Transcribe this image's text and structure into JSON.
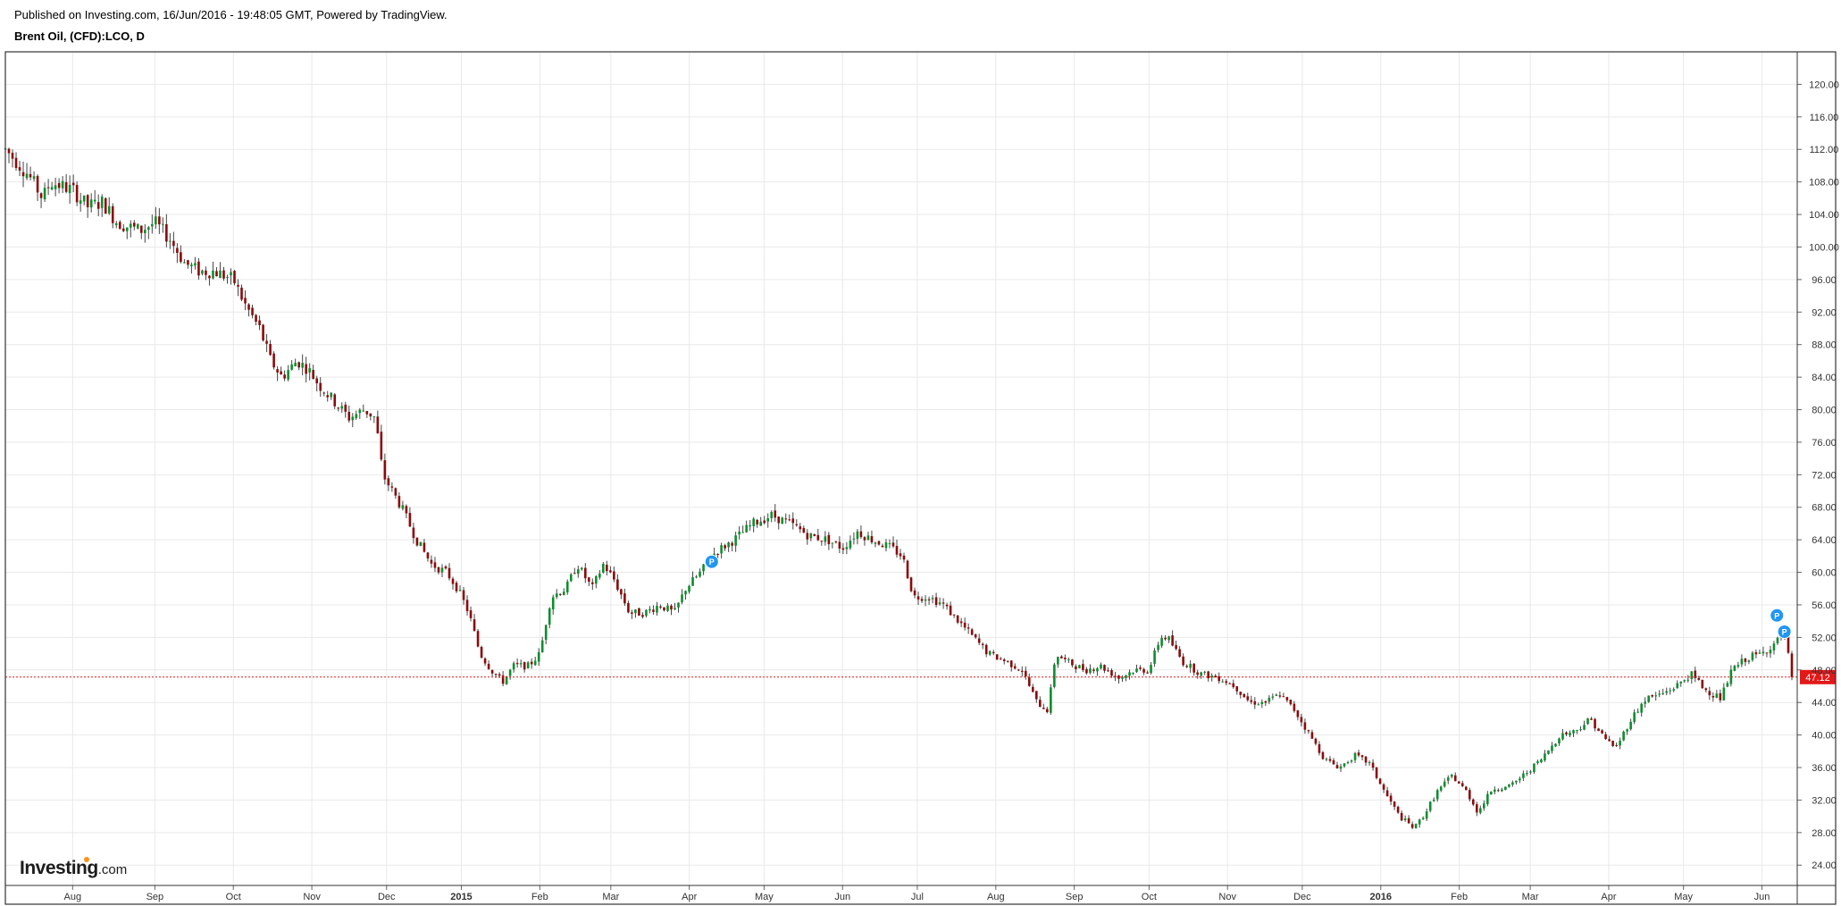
{
  "header": {
    "published": "Published on Investing.com, 16/Jun/2016 - 19:48:05 GMT, Powered by TradingView.",
    "symbol": "Brent Oil, (CFD):LCO, D"
  },
  "logo": {
    "main": "Investing",
    "sub": ".com"
  },
  "chart_data": {
    "type": "candlestick",
    "title": "",
    "ylim": [
      21.5,
      124
    ],
    "y_ticks": [
      "120.00",
      "116.00",
      "112.00",
      "108.00",
      "104.00",
      "100.00",
      "96.00",
      "92.00",
      "88.00",
      "84.00",
      "80.00",
      "76.00",
      "72.00",
      "68.00",
      "64.00",
      "60.00",
      "56.00",
      "52.00",
      "48.00",
      "44.00",
      "40.00",
      "36.00",
      "32.00",
      "28.00",
      "24.00"
    ],
    "x_ticks": [
      {
        "label": "Aug",
        "month": 0.9,
        "bold": false
      },
      {
        "label": "Sep",
        "month": 2.0,
        "bold": false
      },
      {
        "label": "Oct",
        "month": 3.05,
        "bold": false
      },
      {
        "label": "Nov",
        "month": 4.1,
        "bold": false
      },
      {
        "label": "Dec",
        "month": 5.1,
        "bold": false
      },
      {
        "label": "2015",
        "month": 6.1,
        "bold": true
      },
      {
        "label": "Feb",
        "month": 7.15,
        "bold": false
      },
      {
        "label": "Mar",
        "month": 8.1,
        "bold": false
      },
      {
        "label": "Apr",
        "month": 9.15,
        "bold": false
      },
      {
        "label": "May",
        "month": 10.15,
        "bold": false
      },
      {
        "label": "Jun",
        "month": 11.2,
        "bold": false
      },
      {
        "label": "Jul",
        "month": 12.2,
        "bold": false
      },
      {
        "label": "Aug",
        "month": 13.25,
        "bold": false
      },
      {
        "label": "Sep",
        "month": 14.3,
        "bold": false
      },
      {
        "label": "Oct",
        "month": 15.3,
        "bold": false
      },
      {
        "label": "Nov",
        "month": 16.35,
        "bold": false
      },
      {
        "label": "Dec",
        "month": 17.35,
        "bold": false
      },
      {
        "label": "2016",
        "month": 18.4,
        "bold": true
      },
      {
        "label": "Feb",
        "month": 19.45,
        "bold": false
      },
      {
        "label": "Mar",
        "month": 20.4,
        "bold": false
      },
      {
        "label": "Apr",
        "month": 21.45,
        "bold": false
      },
      {
        "label": "May",
        "month": 22.45,
        "bold": false
      },
      {
        "label": "Jun",
        "month": 23.5,
        "bold": false
      }
    ],
    "x_range_months": [
      0,
      23.9
    ],
    "price_path": [
      [
        0.0,
        112
      ],
      [
        0.3,
        109
      ],
      [
        0.5,
        106
      ],
      [
        0.6,
        108
      ],
      [
        0.9,
        107
      ],
      [
        1.1,
        105
      ],
      [
        1.3,
        105.5
      ],
      [
        1.5,
        103
      ],
      [
        1.8,
        102
      ],
      [
        2.0,
        103
      ],
      [
        2.2,
        101
      ],
      [
        2.4,
        98
      ],
      [
        2.6,
        97
      ],
      [
        2.8,
        97
      ],
      [
        3.05,
        96
      ],
      [
        3.2,
        93
      ],
      [
        3.4,
        90
      ],
      [
        3.55,
        86
      ],
      [
        3.7,
        84
      ],
      [
        3.9,
        86
      ],
      [
        4.05,
        85
      ],
      [
        4.2,
        83
      ],
      [
        4.4,
        81
      ],
      [
        4.6,
        79
      ],
      [
        4.8,
        80
      ],
      [
        4.95,
        79
      ],
      [
        5.05,
        72
      ],
      [
        5.3,
        68
      ],
      [
        5.5,
        64
      ],
      [
        5.7,
        61
      ],
      [
        5.9,
        60
      ],
      [
        6.05,
        58
      ],
      [
        6.2,
        55
      ],
      [
        6.35,
        50
      ],
      [
        6.5,
        48
      ],
      [
        6.65,
        46.5
      ],
      [
        6.8,
        48.5
      ],
      [
        7.0,
        48.5
      ],
      [
        7.15,
        50
      ],
      [
        7.3,
        57
      ],
      [
        7.5,
        58
      ],
      [
        7.65,
        61
      ],
      [
        7.85,
        58
      ],
      [
        8.0,
        61
      ],
      [
        8.15,
        59
      ],
      [
        8.35,
        55
      ],
      [
        8.55,
        55
      ],
      [
        8.75,
        56
      ],
      [
        8.95,
        55
      ],
      [
        9.1,
        58
      ],
      [
        9.3,
        60
      ],
      [
        9.5,
        62.5
      ],
      [
        9.75,
        64
      ],
      [
        10.0,
        66
      ],
      [
        10.25,
        67
      ],
      [
        10.5,
        66
      ],
      [
        10.75,
        64.5
      ],
      [
        11.0,
        64
      ],
      [
        11.2,
        63
      ],
      [
        11.4,
        65
      ],
      [
        11.6,
        64
      ],
      [
        11.85,
        63
      ],
      [
        12.0,
        62
      ],
      [
        12.15,
        57
      ],
      [
        12.35,
        57
      ],
      [
        12.55,
        56
      ],
      [
        12.75,
        54
      ],
      [
        12.95,
        52
      ],
      [
        13.15,
        50
      ],
      [
        13.4,
        49
      ],
      [
        13.6,
        48
      ],
      [
        13.8,
        44
      ],
      [
        13.95,
        43
      ],
      [
        14.05,
        50
      ],
      [
        14.2,
        49
      ],
      [
        14.45,
        48
      ],
      [
        14.65,
        48.5
      ],
      [
        14.9,
        47
      ],
      [
        15.1,
        48
      ],
      [
        15.3,
        48
      ],
      [
        15.45,
        52
      ],
      [
        15.55,
        52
      ],
      [
        15.75,
        49
      ],
      [
        16.0,
        47.5
      ],
      [
        16.25,
        47
      ],
      [
        16.45,
        46
      ],
      [
        16.65,
        44
      ],
      [
        16.85,
        44
      ],
      [
        17.05,
        45
      ],
      [
        17.25,
        43
      ],
      [
        17.45,
        40
      ],
      [
        17.65,
        37
      ],
      [
        17.85,
        36
      ],
      [
        18.05,
        37.5
      ],
      [
        18.25,
        36.5
      ],
      [
        18.45,
        33
      ],
      [
        18.65,
        30
      ],
      [
        18.85,
        28.5
      ],
      [
        19.0,
        30.5
      ],
      [
        19.15,
        33
      ],
      [
        19.35,
        35
      ],
      [
        19.55,
        33
      ],
      [
        19.7,
        30.5
      ],
      [
        19.9,
        33.5
      ],
      [
        20.1,
        33.5
      ],
      [
        20.3,
        35
      ],
      [
        20.55,
        37
      ],
      [
        20.8,
        40
      ],
      [
        21.0,
        40.5
      ],
      [
        21.2,
        42
      ],
      [
        21.4,
        39.5
      ],
      [
        21.55,
        38.5
      ],
      [
        21.75,
        42
      ],
      [
        21.95,
        44.5
      ],
      [
        22.15,
        45
      ],
      [
        22.35,
        46
      ],
      [
        22.55,
        47.5
      ],
      [
        22.75,
        45.5
      ],
      [
        22.95,
        44.5
      ],
      [
        23.1,
        48
      ],
      [
        23.3,
        49.5
      ],
      [
        23.5,
        50
      ],
      [
        23.7,
        51.5
      ],
      [
        23.8,
        52.5
      ],
      [
        23.9,
        47.1
      ]
    ],
    "last_price": 47.12,
    "last_price_label": "47.12",
    "markers": [
      {
        "month": 9.45,
        "price": 61.3,
        "label": "P"
      },
      {
        "month": 23.7,
        "price": 54.7,
        "label": "P"
      },
      {
        "month": 23.8,
        "price": 52.7,
        "label": "P"
      }
    ],
    "colors": {
      "up": "#0c8e2e",
      "down": "#8b0a0a",
      "wick": "#444444",
      "grid": "#e9e9e9",
      "border": "#333333",
      "price_line": "#e31818",
      "price_label_bg": "#e31818",
      "marker": "#2196f3"
    }
  }
}
